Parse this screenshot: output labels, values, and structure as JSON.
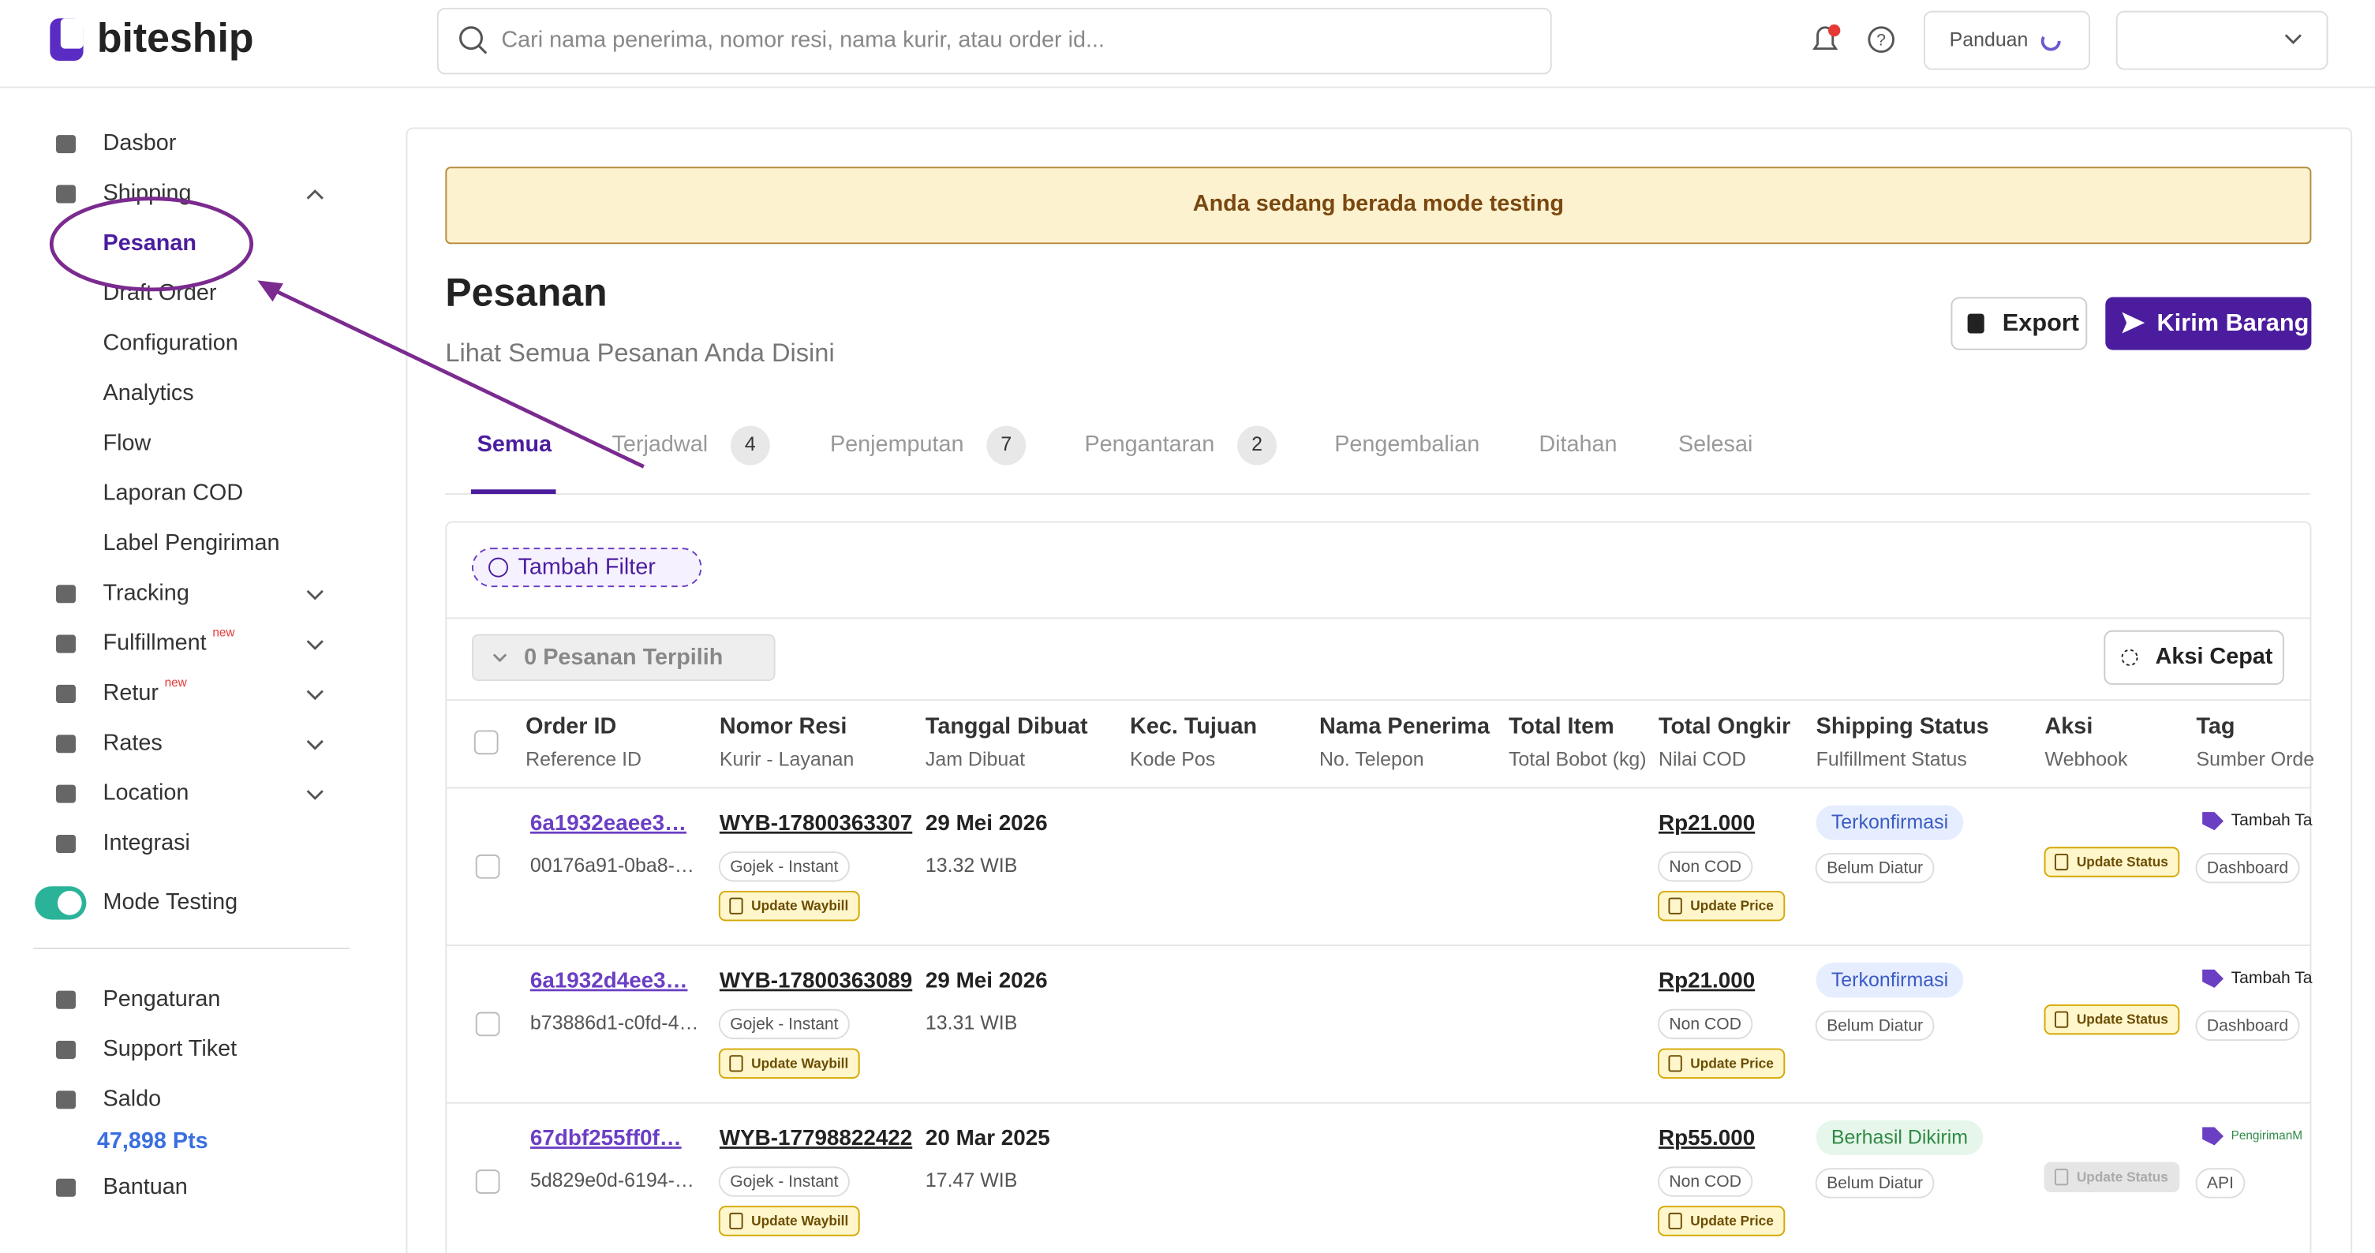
{
  "header": {
    "logo": "biteship",
    "search_placeholder": "Cari nama penerima, nomor resi, nama kurir, atau order id...",
    "guide": "Panduan"
  },
  "sidebar": {
    "items": [
      {
        "label": "Dasbor"
      },
      {
        "label": "Shipping",
        "children": [
          "Pesanan",
          "Draft Order",
          "Configuration",
          "Analytics",
          "Flow",
          "Laporan COD",
          "Label Pengiriman"
        ]
      },
      {
        "label": "Tracking"
      },
      {
        "label": "Fulfillment",
        "badge": "new"
      },
      {
        "label": "Retur",
        "badge": "new"
      },
      {
        "label": "Rates"
      },
      {
        "label": "Location"
      },
      {
        "label": "Integrasi"
      }
    ],
    "mode_testing": "Mode Testing",
    "bottom": [
      "Pengaturan",
      "Support Tiket",
      "Saldo"
    ],
    "points": "47,898 Pts",
    "help": "Bantuan"
  },
  "banner": "Anda sedang berada mode testing",
  "page": {
    "title": "Pesanan",
    "subtitle": "Lihat Semua Pesanan Anda Disini",
    "export": "Export",
    "send": "Kirim Barang"
  },
  "tabs": [
    {
      "label": "Semua"
    },
    {
      "label": "Terjadwal",
      "count": "4"
    },
    {
      "label": "Penjemputan",
      "count": "7"
    },
    {
      "label": "Pengantaran",
      "count": "2"
    },
    {
      "label": "Pengembalian"
    },
    {
      "label": "Ditahan"
    },
    {
      "label": "Selesai"
    }
  ],
  "filter": "Tambah Filter",
  "selected": "0 Pesanan Terpilih",
  "quick_action": "Aksi Cepat",
  "table": {
    "headers": [
      [
        "Order ID",
        "Reference ID"
      ],
      [
        "Nomor Resi",
        "Kurir - Layanan"
      ],
      [
        "Tanggal Dibuat",
        "Jam Dibuat"
      ],
      [
        "Kec. Tujuan",
        "Kode Pos"
      ],
      [
        "Nama Penerima",
        "No. Telepon"
      ],
      [
        "Total Item",
        "Total Bobot (kg)"
      ],
      [
        "Total Ongkir",
        "Nilai COD"
      ],
      [
        "Shipping Status",
        "Fulfillment Status"
      ],
      [
        "Aksi",
        "Webhook"
      ],
      [
        "Tag",
        "Sumber Orde"
      ]
    ],
    "rows": [
      {
        "order_id": "6a1932eaee3…",
        "reference": "00176a91-0ba8-…",
        "resi": "WYB-17800363307",
        "courier": "Gojek - Instant",
        "waybill": "Update Waybill",
        "date": "29 Mei 2026",
        "time": "13.32 WIB",
        "ongkir": "Rp21.000",
        "cod": "Non COD",
        "price": "Update Price",
        "status": "Terkonfirmasi",
        "fulfillment": "Belum Diatur",
        "action": "Update Status",
        "tag": "Tambah Ta",
        "source": "Dashboard"
      },
      {
        "order_id": "6a1932d4ee3…",
        "reference": "b73886d1-c0fd-4…",
        "resi": "WYB-17800363089",
        "courier": "Gojek - Instant",
        "waybill": "Update Waybill",
        "date": "29 Mei 2026",
        "time": "13.31 WIB",
        "ongkir": "Rp21.000",
        "cod": "Non COD",
        "price": "Update Price",
        "status": "Terkonfirmasi",
        "fulfillment": "Belum Diatur",
        "action": "Update Status",
        "tag": "Tambah Ta",
        "source": "Dashboard"
      },
      {
        "order_id": "67dbf255ff0f…",
        "reference": "5d829e0d-6194-…",
        "resi": "WYB-17798822422",
        "courier": "Gojek - Instant",
        "waybill": "Update Waybill",
        "date": "20 Mar 2025",
        "time": "17.47 WIB",
        "ongkir": "Rp55.000",
        "cod": "Non COD",
        "price": "Update Price",
        "status": "Berhasil Dikirim",
        "fulfillment": "Belum Diatur",
        "action": "Update Status",
        "tag": "PengirimanM",
        "source": "API"
      }
    ]
  }
}
